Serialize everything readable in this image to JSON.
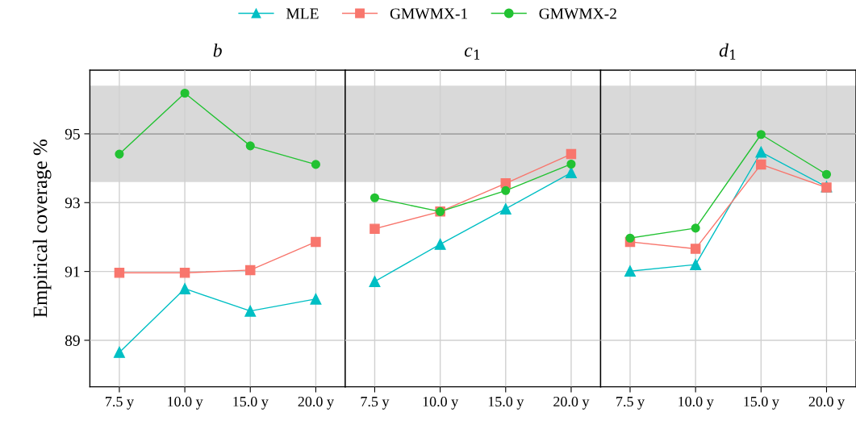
{
  "chart_data": [
    {
      "type": "line",
      "title": "b",
      "ylabel": "Empirical coverage %",
      "categories": [
        "7.5 y",
        "10.0 y",
        "15.0 y",
        "20.0 y"
      ],
      "series": [
        {
          "name": "MLE",
          "color": "#00bfc4",
          "marker": "triangle",
          "values": [
            88.65,
            90.5,
            89.85,
            90.2
          ]
        },
        {
          "name": "GMWMX-1",
          "color": "#f8766d",
          "marker": "square",
          "values": [
            90.96,
            90.96,
            91.04,
            91.86
          ]
        },
        {
          "name": "GMWMX-2",
          "color": "#22c232",
          "marker": "circle",
          "values": [
            94.41,
            96.18,
            94.65,
            94.11
          ]
        }
      ],
      "ylim": [
        87.65,
        96.85
      ],
      "yticks": [
        89,
        91,
        93,
        95
      ],
      "grid": true,
      "legend": "top",
      "bands": [
        {
          "axis": "y",
          "from": 93.6,
          "to": 96.4,
          "color": "#d9d9d9"
        }
      ],
      "ref_lines": [
        {
          "axis": "y",
          "value": 95,
          "color": "#555555"
        }
      ]
    },
    {
      "type": "line",
      "title": "c$_{1}$",
      "categories": [
        "7.5 y",
        "10.0 y",
        "15.0 y",
        "20.0 y"
      ],
      "series": [
        {
          "name": "MLE",
          "color": "#00bfc4",
          "marker": "triangle",
          "values": [
            90.71,
            91.79,
            92.82,
            93.87
          ]
        },
        {
          "name": "GMWMX-1",
          "color": "#f8766d",
          "marker": "square",
          "values": [
            92.24,
            92.74,
            93.56,
            94.41
          ]
        },
        {
          "name": "GMWMX-2",
          "color": "#22c232",
          "marker": "circle",
          "values": [
            93.14,
            92.74,
            93.35,
            94.12
          ]
        }
      ],
      "ylim": [
        87.65,
        96.85
      ],
      "yticks": [
        89,
        91,
        93,
        95
      ],
      "grid": true,
      "tick_labels": "x",
      "bands": [
        {
          "axis": "y",
          "from": 93.6,
          "to": 96.4,
          "color": "#d9d9d9"
        }
      ],
      "ref_lines": [
        {
          "axis": "y",
          "value": 95,
          "color": "#555555"
        }
      ]
    },
    {
      "type": "line",
      "title": "d$_{1}$",
      "categories": [
        "7.5 y",
        "10.0 y",
        "15.0 y",
        "20.0 y"
      ],
      "series": [
        {
          "name": "MLE",
          "color": "#00bfc4",
          "marker": "triangle",
          "values": [
            91.01,
            91.2,
            94.47,
            93.46
          ]
        },
        {
          "name": "GMWMX-1",
          "color": "#f8766d",
          "marker": "square",
          "values": [
            91.86,
            91.66,
            94.11,
            93.44
          ]
        },
        {
          "name": "GMWMX-2",
          "color": "#22c232",
          "marker": "circle",
          "values": [
            91.97,
            92.26,
            94.98,
            93.82
          ]
        }
      ],
      "ylim": [
        87.65,
        96.85
      ],
      "yticks": [
        89,
        91,
        93,
        95
      ],
      "grid": true,
      "tick_labels": "x",
      "bands": [
        {
          "axis": "y",
          "from": 93.6,
          "to": 96.4,
          "color": "#d9d9d9"
        }
      ],
      "ref_lines": [
        {
          "axis": "y",
          "value": 95,
          "color": "#555555"
        }
      ]
    }
  ]
}
